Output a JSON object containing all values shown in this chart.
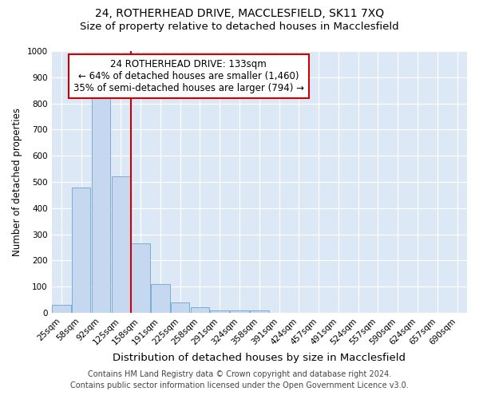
{
  "title": "24, ROTHERHEAD DRIVE, MACCLESFIELD, SK11 7XQ",
  "subtitle": "Size of property relative to detached houses in Macclesfield",
  "xlabel": "Distribution of detached houses by size in Macclesfield",
  "ylabel": "Number of detached properties",
  "bin_labels": [
    "25sqm",
    "58sqm",
    "92sqm",
    "125sqm",
    "158sqm",
    "191sqm",
    "225sqm",
    "258sqm",
    "291sqm",
    "324sqm",
    "358sqm",
    "391sqm",
    "424sqm",
    "457sqm",
    "491sqm",
    "524sqm",
    "557sqm",
    "590sqm",
    "624sqm",
    "657sqm",
    "690sqm"
  ],
  "bar_heights": [
    30,
    480,
    820,
    520,
    265,
    110,
    38,
    20,
    10,
    10,
    10,
    0,
    0,
    0,
    0,
    0,
    0,
    0,
    0,
    0,
    0
  ],
  "bar_color": "#c5d8ef",
  "bar_edge_color": "#7aadd4",
  "red_line_x": 3.5,
  "red_line_color": "#cc0000",
  "ylim": [
    0,
    1000
  ],
  "yticks": [
    0,
    100,
    200,
    300,
    400,
    500,
    600,
    700,
    800,
    900,
    1000
  ],
  "background_color": "#dce8f5",
  "annotation_text": "24 ROTHERHEAD DRIVE: 133sqm\n← 64% of detached houses are smaller (1,460)\n35% of semi-detached houses are larger (794) →",
  "annotation_box_color": "#ffffff",
  "annotation_box_edge_color": "#cc0000",
  "footer_line1": "Contains HM Land Registry data © Crown copyright and database right 2024.",
  "footer_line2": "Contains public sector information licensed under the Open Government Licence v3.0.",
  "title_fontsize": 10,
  "subtitle_fontsize": 9.5,
  "xlabel_fontsize": 9.5,
  "ylabel_fontsize": 8.5,
  "tick_fontsize": 7.5,
  "annotation_fontsize": 8.5,
  "footer_fontsize": 7
}
